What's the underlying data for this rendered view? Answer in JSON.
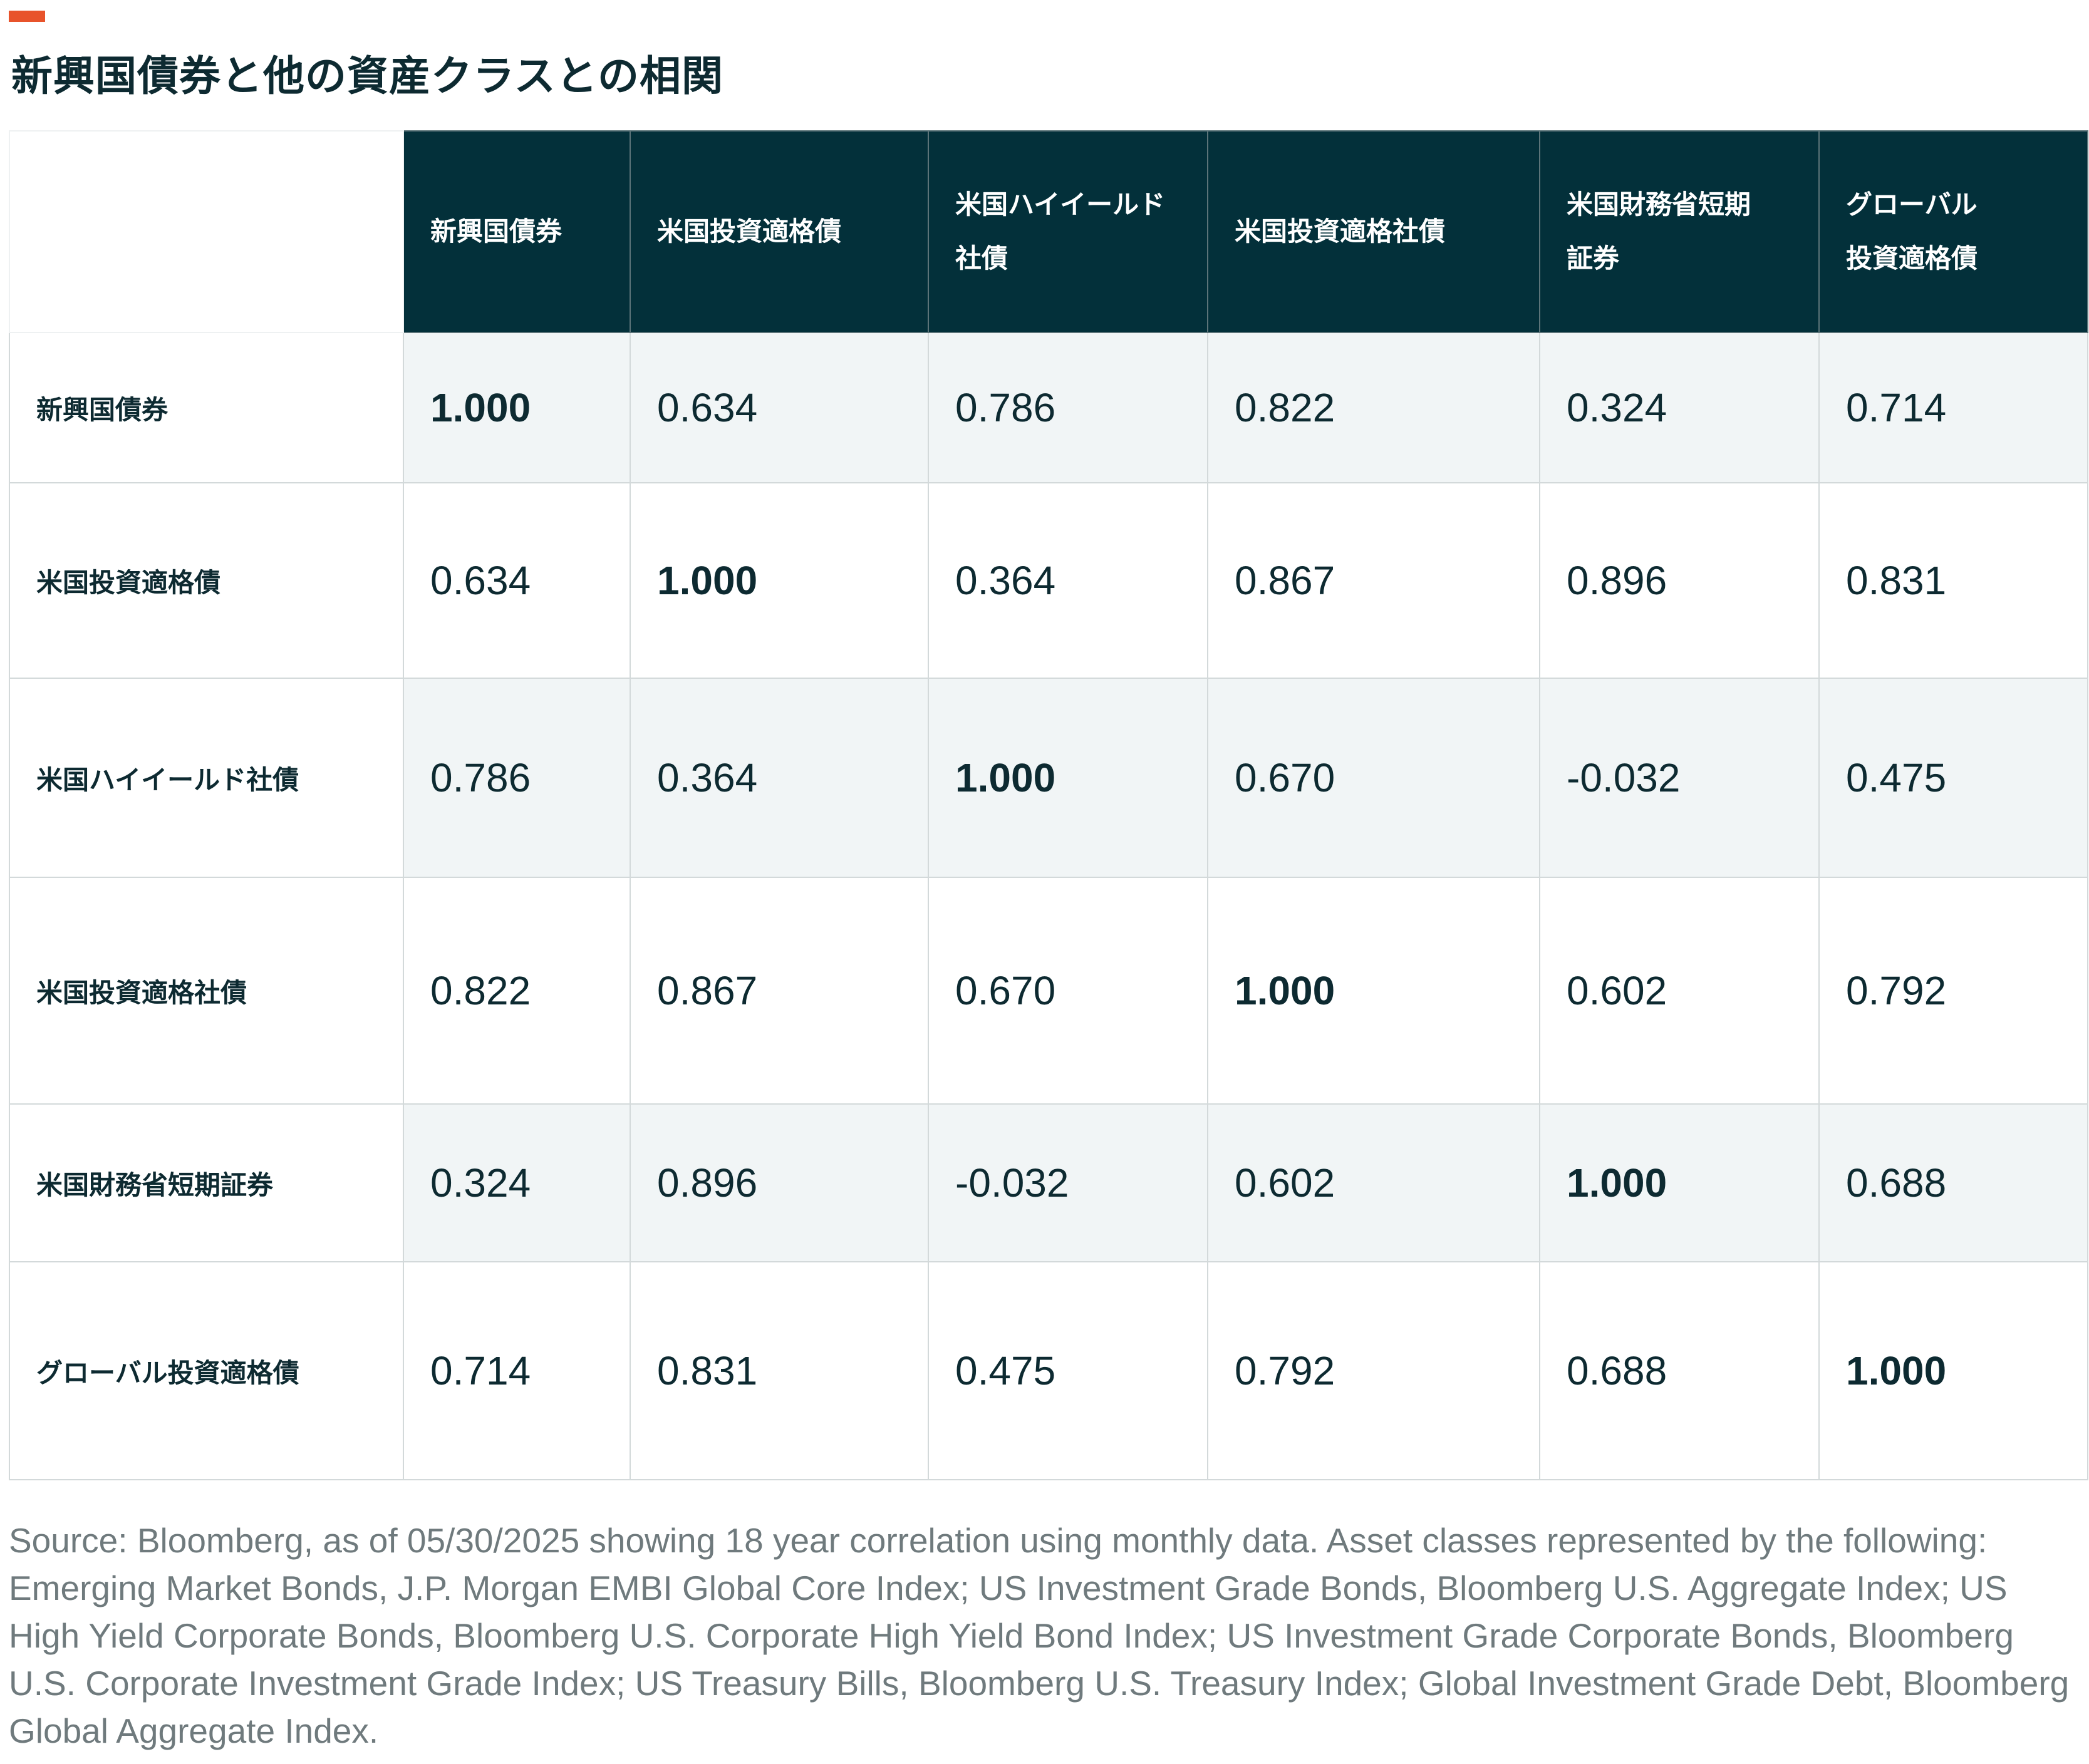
{
  "title": "新興国債券と他の資産クラスとの相関",
  "accent_color": "#e8532b",
  "header_color": "#03303a",
  "chart_data": {
    "type": "table",
    "title": "新興国債券と他の資産クラスとの相関",
    "columns": [
      "新興国債券",
      "米国投資適格債",
      "米国ハイイールド社債",
      "米国投資適格社債",
      "米国財務省短期証券",
      "グローバル投資適格債"
    ],
    "column_lines": [
      [
        "新興国債券"
      ],
      [
        "米国投資適格債"
      ],
      [
        "米国ハイイールド",
        "社債"
      ],
      [
        "米国投資適格社債"
      ],
      [
        "米国財務省短期",
        "証券"
      ],
      [
        "グローバル",
        "投資適格債"
      ]
    ],
    "rows": [
      {
        "label": "新興国債券",
        "values": [
          "1.000",
          "0.634",
          "0.786",
          "0.822",
          "0.324",
          "0.714"
        ]
      },
      {
        "label": "米国投資適格債",
        "values": [
          "0.634",
          "1.000",
          "0.364",
          "0.867",
          "0.896",
          "0.831"
        ]
      },
      {
        "label": "米国ハイイールド社債",
        "values": [
          "0.786",
          "0.364",
          "1.000",
          "0.670",
          "-0.032",
          "0.475"
        ]
      },
      {
        "label": "米国投資適格社債",
        "values": [
          "0.822",
          "0.867",
          "0.670",
          "1.000",
          "0.602",
          "0.792"
        ]
      },
      {
        "label": "米国財務省短期証券",
        "values": [
          "0.324",
          "0.896",
          "-0.032",
          "0.602",
          "1.000",
          "0.688"
        ]
      },
      {
        "label": "グローバル投資適格債",
        "values": [
          "0.714",
          "0.831",
          "0.475",
          "0.792",
          "0.688",
          "1.000"
        ]
      }
    ]
  },
  "source_note": "Source: Bloomberg, as of 05/30/2025 showing 18 year correlation using monthly data. Asset classes represented by the following: Emerging Market Bonds, J.P. Morgan EMBI Global Core Index; US Investment Grade Bonds, Bloomberg U.S. Aggregate Index; US High Yield Corporate Bonds, Bloomberg U.S. Corporate High Yield Bond Index; US Investment Grade Corporate Bonds, Bloomberg U.S. Corporate Investment Grade Index; US Treasury Bills, Bloomberg U.S. Treasury Index; Global Investment Grade Debt, Bloomberg Global Aggregate Index."
}
